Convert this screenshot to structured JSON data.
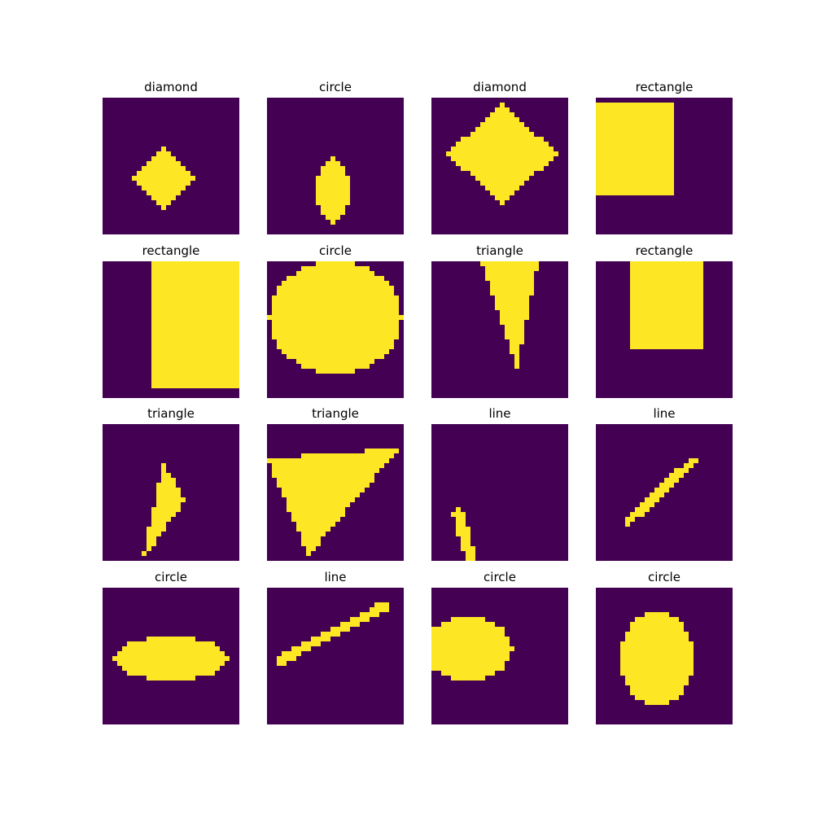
{
  "colors": {
    "background": "#440154",
    "foreground": "#fde725"
  },
  "grid_size": 28,
  "panels": [
    {
      "title": "diamond",
      "shape": {
        "kind": "diamond",
        "cx": 12.5,
        "cy": 16.5,
        "r": 6
      }
    },
    {
      "title": "circle",
      "shape": {
        "kind": "ellipse",
        "cx": 13.5,
        "cy": 19.0,
        "rx": 3.5,
        "ry": 6.5
      }
    },
    {
      "title": "diamond",
      "shape": {
        "kind": "diamond",
        "cx": 14.5,
        "cy": 11.5,
        "rx": 11.5,
        "ry": 10
      }
    },
    {
      "title": "rectangle",
      "shape": {
        "kind": "rect",
        "x0": 0,
        "y0": 1,
        "x1": 16,
        "y1": 20
      }
    },
    {
      "title": "rectangle",
      "shape": {
        "kind": "rect",
        "x0": 10,
        "y0": 0,
        "x1": 28,
        "y1": 26
      }
    },
    {
      "title": "circle",
      "shape": {
        "kind": "ellipse",
        "cx": 14,
        "cy": 11.5,
        "rx": 13.5,
        "ry": 11.5
      }
    },
    {
      "title": "triangle",
      "shape": {
        "kind": "triangle",
        "pts": [
          [
            10,
            0
          ],
          [
            22,
            0
          ],
          [
            17.5,
            22
          ]
        ]
      }
    },
    {
      "title": "rectangle",
      "shape": {
        "kind": "rect",
        "x0": 7,
        "y0": 0,
        "x1": 22,
        "y1": 18
      }
    },
    {
      "title": "triangle",
      "shape": {
        "kind": "triangle",
        "pts": [
          [
            12.5,
            8
          ],
          [
            17,
            15.5
          ],
          [
            8,
            28
          ]
        ]
      }
    },
    {
      "title": "triangle",
      "shape": {
        "kind": "triangle",
        "pts": [
          [
            0,
            7
          ],
          [
            27,
            5
          ],
          [
            8.5,
            27
          ]
        ]
      }
    },
    {
      "title": "line",
      "shape": {
        "kind": "line",
        "x0": 5.5,
        "y0": 18.5,
        "x1": 8,
        "y1": 27.5,
        "w": 2
      }
    },
    {
      "title": "line",
      "shape": {
        "kind": "line",
        "x0": 6.5,
        "y0": 20,
        "x1": 20,
        "y1": 7.5,
        "w": 1.6
      }
    },
    {
      "title": "circle",
      "shape": {
        "kind": "ellipse",
        "cx": 14,
        "cy": 14.5,
        "rx": 11.5,
        "ry": 4.5
      }
    },
    {
      "title": "line",
      "shape": {
        "kind": "line",
        "x0": 2.5,
        "y0": 15,
        "x1": 24.5,
        "y1": 3.5,
        "w": 1.6
      }
    },
    {
      "title": "circle",
      "shape": {
        "kind": "ellipse",
        "cx": 7.5,
        "cy": 12.5,
        "rx": 9,
        "ry": 6.5
      }
    },
    {
      "title": "circle",
      "shape": {
        "kind": "ellipse",
        "cx": 12.5,
        "cy": 14.5,
        "rx": 7.5,
        "ry": 9.5
      }
    }
  ]
}
